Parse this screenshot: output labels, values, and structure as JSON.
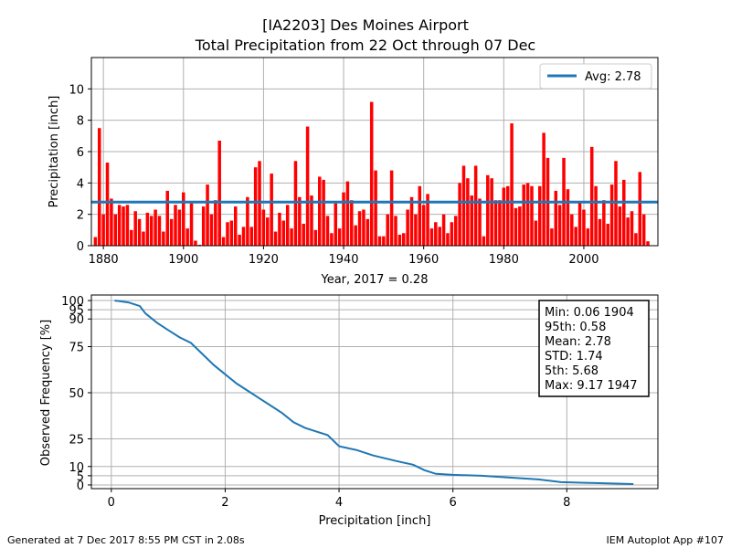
{
  "title_line1": "[IA2203] Des Moines Airport",
  "title_line2": "Total Precipitation from 22 Oct through 07 Dec",
  "footer_left": "Generated at 7 Dec 2017 8:55 PM CST in 2.08s",
  "footer_right": "IEM Autoplot App #107",
  "colors": {
    "bar": "#ff0000",
    "bar_current": "#008000",
    "line": "#1f77b4",
    "grid": "#b0b0b0"
  },
  "chart_data": [
    {
      "type": "bar",
      "title": "",
      "xlabel": "Year, 2017 = 0.28",
      "ylabel": "Precipitation [inch]",
      "xlim": [
        1877,
        2018.5
      ],
      "ylim": [
        0,
        12
      ],
      "xticks": [
        1880,
        1900,
        1920,
        1940,
        1960,
        1980,
        2000
      ],
      "yticks": [
        0,
        2,
        4,
        6,
        8,
        10
      ],
      "grid": true,
      "legend_location": "top-right",
      "average": {
        "label": "Avg: 2.78",
        "value": 2.78
      },
      "current_year": {
        "year": 2017,
        "value": 0.28
      },
      "x_start": 1878,
      "values": [
        0.55,
        7.5,
        2.0,
        5.3,
        3.0,
        2.0,
        2.6,
        2.5,
        2.6,
        1.0,
        2.2,
        1.7,
        0.9,
        2.1,
        1.9,
        2.3,
        1.9,
        0.9,
        3.5,
        1.7,
        2.6,
        2.3,
        3.4,
        1.1,
        2.7,
        0.32,
        0.06,
        2.5,
        3.9,
        2.0,
        2.9,
        6.7,
        0.55,
        1.5,
        1.6,
        2.5,
        0.7,
        1.2,
        3.1,
        1.2,
        5.0,
        5.4,
        2.3,
        1.8,
        4.6,
        0.9,
        2.1,
        1.6,
        2.6,
        1.1,
        5.4,
        3.1,
        1.4,
        7.6,
        3.2,
        1.0,
        4.4,
        4.2,
        1.9,
        0.8,
        2.7,
        1.1,
        3.4,
        4.1,
        2.9,
        1.3,
        2.2,
        2.3,
        1.7,
        9.17,
        4.8,
        0.6,
        0.6,
        2.0,
        4.8,
        1.9,
        0.7,
        0.8,
        2.3,
        3.1,
        2.0,
        3.8,
        2.6,
        3.3,
        1.1,
        1.5,
        1.2,
        2.0,
        0.8,
        1.5,
        1.9,
        4.0,
        5.1,
        4.3,
        3.2,
        5.1,
        3.0,
        0.6,
        4.5,
        4.3,
        2.9,
        2.9,
        3.7,
        3.8,
        7.8,
        2.4,
        2.5,
        3.9,
        4.0,
        3.8,
        1.6,
        3.8,
        7.2,
        5.6,
        1.1,
        3.5,
        2.6,
        5.6,
        3.6,
        2.0,
        1.2,
        2.8,
        2.3,
        1.1,
        6.3,
        3.8,
        1.7,
        2.9,
        1.4,
        3.9,
        5.4,
        2.5,
        4.2,
        1.8,
        2.2,
        0.8,
        4.7,
        2.0,
        0.28
      ]
    },
    {
      "type": "line",
      "title": "",
      "xlabel": "Precipitation [inch]",
      "ylabel": "Observed Frequency [%]",
      "xlim": [
        -0.35,
        9.6
      ],
      "ylim": [
        -2,
        103
      ],
      "xticks": [
        0,
        2,
        4,
        6,
        8
      ],
      "yticks": [
        0,
        5,
        10,
        25,
        50,
        75,
        90,
        95,
        100
      ],
      "grid": true,
      "legend_location": "top-right",
      "stats_box": [
        "Min: 0.06 1904",
        "95th: 0.58",
        "Mean: 2.78",
        "STD: 1.74",
        "5th: 5.68",
        "Max: 9.17 1947"
      ],
      "x": [
        0.06,
        0.3,
        0.5,
        0.6,
        0.8,
        1.0,
        1.2,
        1.4,
        1.6,
        1.8,
        2.0,
        2.2,
        2.4,
        2.6,
        2.8,
        3.0,
        3.2,
        3.4,
        3.6,
        3.8,
        4.0,
        4.3,
        4.6,
        5.0,
        5.3,
        5.5,
        5.7,
        6.0,
        6.5,
        7.0,
        7.5,
        7.9,
        8.5,
        9.17
      ],
      "y": [
        100,
        99,
        97,
        93,
        88,
        84,
        80,
        77,
        71,
        65,
        60,
        55,
        51,
        47,
        43,
        39,
        34,
        31,
        29,
        27,
        21,
        19,
        16,
        13,
        11,
        8,
        6,
        5.5,
        5,
        4,
        3,
        1.5,
        1,
        0.5
      ]
    }
  ]
}
